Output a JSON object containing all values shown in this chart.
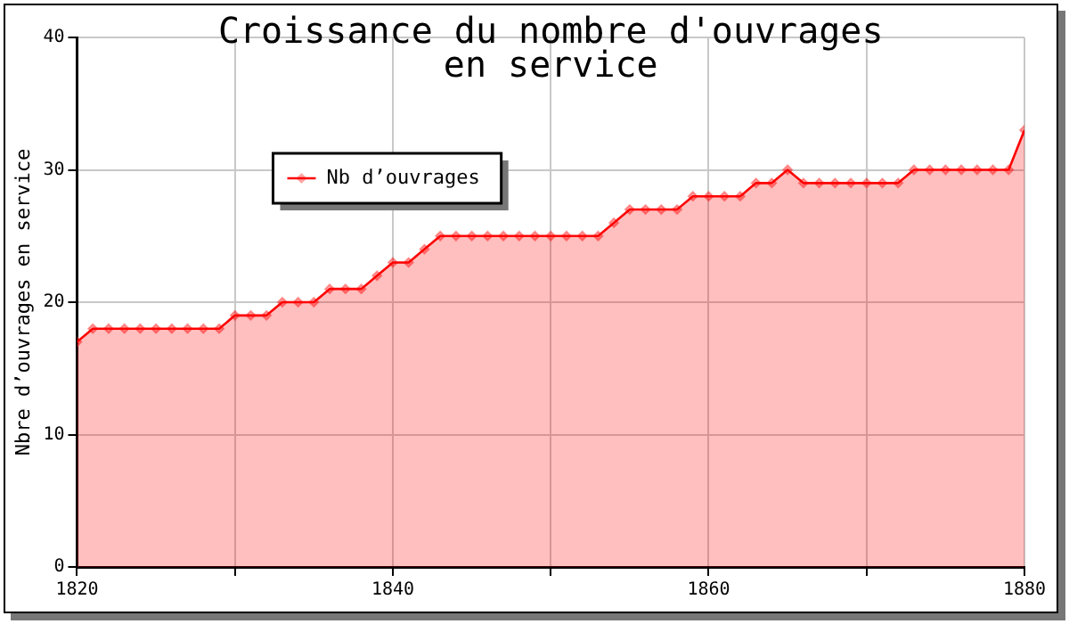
{
  "chart_data": {
    "type": "area",
    "title": "Croissance du nombre d'ouvrages\nen service",
    "ylabel": "Nbre d’ouvrages en service",
    "x": [
      1820,
      1821,
      1822,
      1823,
      1824,
      1825,
      1826,
      1827,
      1828,
      1829,
      1830,
      1831,
      1832,
      1833,
      1834,
      1835,
      1836,
      1837,
      1838,
      1839,
      1840,
      1841,
      1842,
      1843,
      1844,
      1845,
      1846,
      1847,
      1848,
      1849,
      1850,
      1851,
      1852,
      1853,
      1854,
      1855,
      1856,
      1857,
      1858,
      1859,
      1860,
      1861,
      1862,
      1863,
      1864,
      1865,
      1866,
      1867,
      1868,
      1869,
      1870,
      1871,
      1872,
      1873,
      1874,
      1875,
      1876,
      1877,
      1878,
      1879,
      1880
    ],
    "series": [
      {
        "name": "Nb d’ouvrages",
        "color": "#ff0000",
        "values": [
          17,
          18,
          18,
          18,
          18,
          18,
          18,
          18,
          18,
          18,
          19,
          19,
          19,
          20,
          20,
          20,
          21,
          21,
          21,
          22,
          23,
          23,
          24,
          25,
          25,
          25,
          25,
          25,
          25,
          25,
          25,
          25,
          25,
          25,
          26,
          27,
          27,
          27,
          27,
          28,
          28,
          28,
          28,
          29,
          29,
          30,
          29,
          29,
          29,
          29,
          29,
          29,
          29,
          30,
          30,
          30,
          30,
          30,
          30,
          30,
          33
        ]
      }
    ],
    "xlim": [
      1820,
      1880
    ],
    "xticks": [
      1820,
      {
        "value": 1830,
        "label": null
      },
      1840,
      {
        "value": 1850,
        "label": null
      },
      1860,
      {
        "value": 1870,
        "label": null
      },
      1880
    ],
    "ylim": [
      0,
      40
    ],
    "yticks": [
      0,
      10,
      20,
      30,
      40
    ],
    "grid": true,
    "legend": "top left",
    "marker": "diamond",
    "line_style": "solid"
  }
}
